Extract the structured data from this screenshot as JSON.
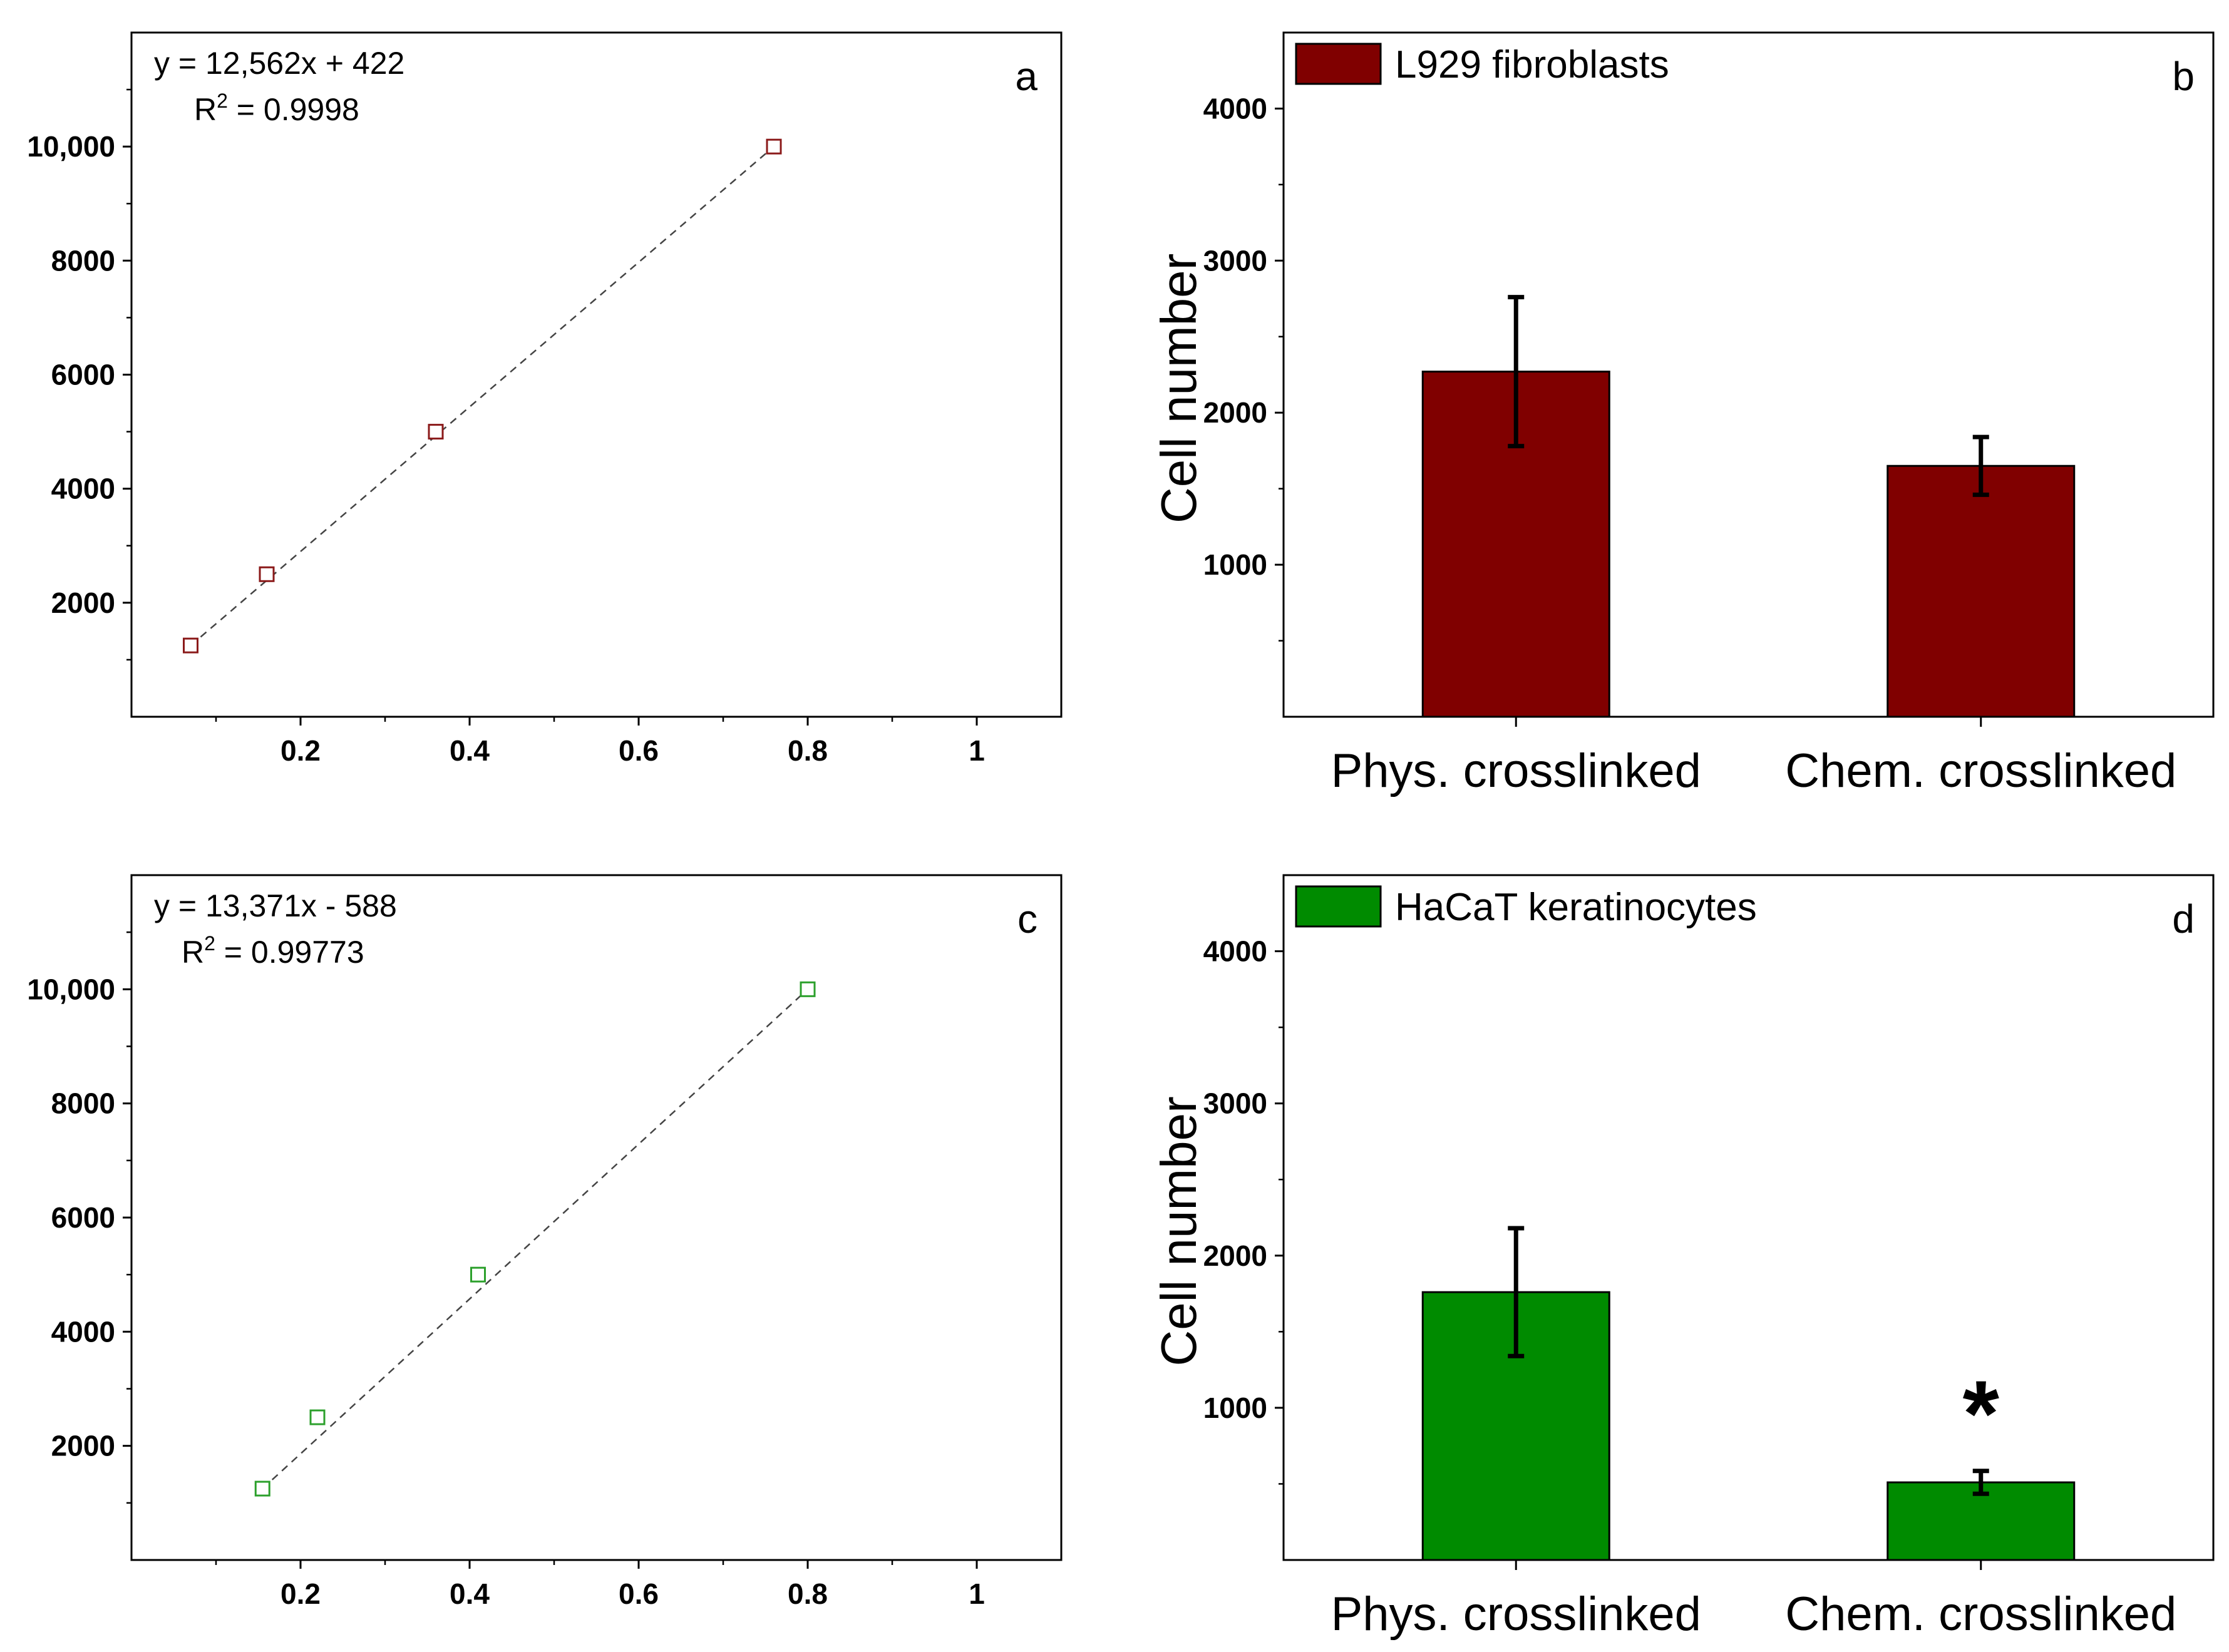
{
  "chart_data": [
    {
      "panel": "a",
      "type": "scatter",
      "equation": "y = 12,562x + 422",
      "r2_prefix": "R",
      "r2_sup": "2",
      "r2_value": " = 0.9998",
      "x": [
        0.07,
        0.16,
        0.36,
        0.76
      ],
      "y": [
        1250,
        2500,
        5000,
        10000
      ],
      "xlim": [
        0,
        1.1
      ],
      "ylim": [
        0,
        12000
      ],
      "xticks": [
        0.2,
        0.4,
        0.6,
        0.8,
        1
      ],
      "xtick_labels": [
        "0.2",
        "0.4",
        "0.6",
        "0.8",
        "1"
      ],
      "yticks": [
        2000,
        4000,
        6000,
        8000,
        10000
      ],
      "ytick_labels": [
        "2000",
        "4000",
        "6000",
        "8000",
        "10,000"
      ],
      "color": "#8b1a1a"
    },
    {
      "panel": "b",
      "type": "bar",
      "legend": "L929 fibroblasts",
      "ylabel": "Cell number",
      "categories": [
        "Phys. crosslinked",
        "Chem. crosslinked"
      ],
      "values": [
        2270,
        1650
      ],
      "errors": [
        490,
        190
      ],
      "ylim": [
        0,
        4500
      ],
      "yticks": [
        1000,
        2000,
        3000,
        4000
      ],
      "ytick_labels": [
        "1000",
        "2000",
        "3000",
        "4000"
      ],
      "color": "#800000",
      "significance": [
        "",
        ""
      ]
    },
    {
      "panel": "c",
      "type": "scatter",
      "equation": "y = 13,371x - 588",
      "r2_prefix": "R",
      "r2_sup": "2",
      "r2_value": " = 0.99773",
      "x": [
        0.155,
        0.22,
        0.41,
        0.8
      ],
      "y": [
        1250,
        2500,
        5000,
        10000
      ],
      "xlim": [
        0,
        1.1
      ],
      "ylim": [
        0,
        12000
      ],
      "xticks": [
        0.2,
        0.4,
        0.6,
        0.8,
        1
      ],
      "xtick_labels": [
        "0.2",
        "0.4",
        "0.6",
        "0.8",
        "1"
      ],
      "yticks": [
        2000,
        4000,
        6000,
        8000,
        10000
      ],
      "ytick_labels": [
        "2000",
        "4000",
        "6000",
        "8000",
        "10,000"
      ],
      "color": "#2ca02c"
    },
    {
      "panel": "d",
      "type": "bar",
      "legend": "HaCaT keratinocytes",
      "ylabel": "Cell number",
      "categories": [
        "Phys. crosslinked",
        "Chem. crosslinked"
      ],
      "values": [
        1760,
        510
      ],
      "errors": [
        420,
        75
      ],
      "ylim": [
        0,
        4500
      ],
      "yticks": [
        1000,
        2000,
        3000,
        4000
      ],
      "ytick_labels": [
        "1000",
        "2000",
        "3000",
        "4000"
      ],
      "color": "#008b00",
      "significance": [
        "",
        "*"
      ]
    }
  ]
}
